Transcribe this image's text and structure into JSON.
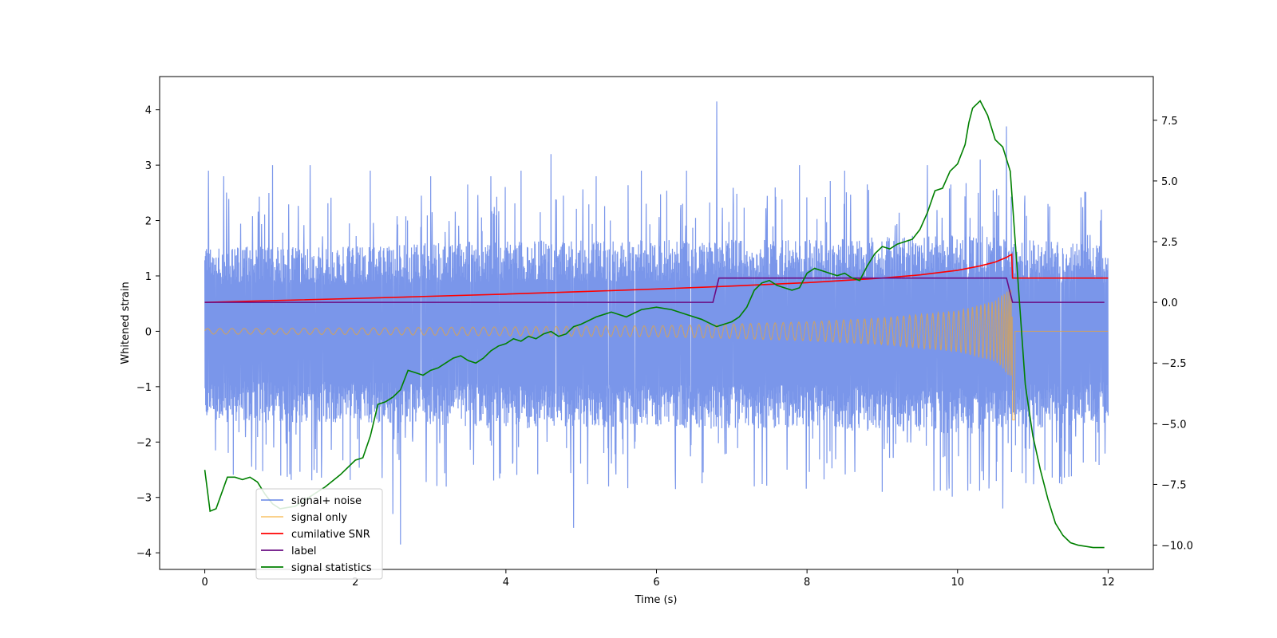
{
  "chart_data": {
    "type": "line",
    "xlabel": "Time (s)",
    "ylabel": "Whitened strain",
    "y2label": "",
    "xlim": [
      -0.6,
      12.6
    ],
    "ylim": [
      -4.3,
      4.6
    ],
    "y2lim": [
      -11.0,
      9.3
    ],
    "xticks": [
      0,
      2,
      4,
      6,
      8,
      10,
      12
    ],
    "yticks": [
      -4,
      -3,
      -2,
      -1,
      0,
      1,
      2,
      3,
      4
    ],
    "y2ticks": [
      -10.0,
      -7.5,
      -5.0,
      -2.5,
      0.0,
      2.5,
      5.0,
      7.5
    ],
    "y2tick_labels": [
      "−10.0",
      "−7.5",
      "−5.0",
      "−2.5",
      "0.0",
      "2.5",
      "5.0",
      "7.5"
    ],
    "grid": false,
    "legend_position": "lower-left",
    "series": [
      {
        "name": "signal+ noise",
        "axis": "left",
        "color": "#4169e1",
        "kind": "noise-envelope",
        "x_range": [
          0,
          12
        ],
        "envelope_upper": [
          [
            0,
            1.4
          ],
          [
            2,
            1.4
          ],
          [
            4,
            1.5
          ],
          [
            6,
            1.5
          ],
          [
            8,
            1.5
          ],
          [
            10,
            1.6
          ],
          [
            11,
            1.5
          ],
          [
            12,
            1.4
          ]
        ],
        "envelope_lower": [
          [
            0,
            -1.5
          ],
          [
            2,
            -1.5
          ],
          [
            4,
            -1.6
          ],
          [
            6,
            -1.6
          ],
          [
            8,
            -1.6
          ],
          [
            10,
            -1.7
          ],
          [
            11,
            -1.6
          ],
          [
            12,
            -1.5
          ]
        ],
        "spikes": [
          [
            0.05,
            2.9
          ],
          [
            0.25,
            2.8
          ],
          [
            0.9,
            3.0
          ],
          [
            1.4,
            3.0
          ],
          [
            2.2,
            2.9
          ],
          [
            2.5,
            -3.3
          ],
          [
            2.6,
            -3.85
          ],
          [
            3.0,
            2.8
          ],
          [
            3.8,
            2.8
          ],
          [
            4.2,
            2.9
          ],
          [
            4.6,
            3.2
          ],
          [
            4.9,
            -3.55
          ],
          [
            5.2,
            2.8
          ],
          [
            5.8,
            2.9
          ],
          [
            6.4,
            2.9
          ],
          [
            6.8,
            4.15
          ],
          [
            7.3,
            -2.8
          ],
          [
            7.9,
            3.0
          ],
          [
            8.5,
            2.9
          ],
          [
            9.0,
            -2.9
          ],
          [
            9.6,
            3.0
          ],
          [
            10.3,
            3.1
          ],
          [
            10.6,
            -3.2
          ],
          [
            10.65,
            3.7
          ],
          [
            11.2,
            2.3
          ],
          [
            11.9,
            2.0
          ]
        ]
      },
      {
        "name": "signal only",
        "axis": "left",
        "color": "#f5a623",
        "kind": "chirp",
        "x": [
          0,
          2,
          4,
          6,
          7,
          8,
          9,
          10,
          10.5,
          10.75,
          12
        ],
        "amplitude": [
          0.05,
          0.06,
          0.08,
          0.1,
          0.13,
          0.17,
          0.24,
          0.37,
          0.55,
          0.9,
          0.0
        ]
      },
      {
        "name": "cumilative SNR",
        "axis": "right",
        "color": "#ff0000",
        "x": [
          0,
          1,
          2,
          3,
          4,
          5,
          6,
          7,
          8,
          9,
          9.5,
          10,
          10.3,
          10.5,
          10.65,
          10.72,
          10.73,
          12
        ],
        "y": [
          0.0,
          0.08,
          0.16,
          0.25,
          0.34,
          0.44,
          0.55,
          0.67,
          0.81,
          1.0,
          1.13,
          1.32,
          1.5,
          1.66,
          1.85,
          1.98,
          1.0,
          1.0
        ]
      },
      {
        "name": "label",
        "axis": "right",
        "color": "#6a0d83",
        "x": [
          0,
          6.75,
          6.83,
          10.65,
          10.73,
          11.95
        ],
        "y": [
          0.0,
          0.0,
          1.0,
          1.0,
          0.0,
          0.0
        ]
      },
      {
        "name": "signal statistics",
        "axis": "right",
        "color": "#008000",
        "x": [
          0,
          0.07,
          0.15,
          0.3,
          0.4,
          0.5,
          0.6,
          0.7,
          0.8,
          0.9,
          1.0,
          1.2,
          1.4,
          1.6,
          1.8,
          2.0,
          2.1,
          2.2,
          2.3,
          2.4,
          2.5,
          2.6,
          2.7,
          2.8,
          2.9,
          3.0,
          3.1,
          3.2,
          3.3,
          3.4,
          3.5,
          3.6,
          3.7,
          3.8,
          3.9,
          4.0,
          4.1,
          4.2,
          4.3,
          4.4,
          4.5,
          4.6,
          4.7,
          4.8,
          4.9,
          5.0,
          5.2,
          5.4,
          5.6,
          5.8,
          6.0,
          6.2,
          6.4,
          6.6,
          6.8,
          6.9,
          7.0,
          7.1,
          7.2,
          7.3,
          7.4,
          7.5,
          7.6,
          7.7,
          7.8,
          7.9,
          8.0,
          8.1,
          8.2,
          8.3,
          8.4,
          8.5,
          8.6,
          8.7,
          8.8,
          8.9,
          9.0,
          9.1,
          9.2,
          9.3,
          9.4,
          9.5,
          9.6,
          9.7,
          9.8,
          9.9,
          10.0,
          10.1,
          10.15,
          10.2,
          10.3,
          10.4,
          10.5,
          10.6,
          10.7,
          10.8,
          10.9,
          11.0,
          11.1,
          11.2,
          11.3,
          11.4,
          11.5,
          11.6,
          11.8,
          11.95
        ],
        "y": [
          -6.9,
          -8.6,
          -8.5,
          -7.2,
          -7.2,
          -7.3,
          -7.2,
          -7.4,
          -7.9,
          -8.3,
          -8.5,
          -8.4,
          -8.0,
          -7.6,
          -7.1,
          -6.5,
          -6.4,
          -5.5,
          -4.2,
          -4.1,
          -3.9,
          -3.6,
          -2.8,
          -2.9,
          -3.0,
          -2.8,
          -2.7,
          -2.5,
          -2.3,
          -2.2,
          -2.4,
          -2.5,
          -2.3,
          -2.0,
          -1.8,
          -1.7,
          -1.5,
          -1.6,
          -1.4,
          -1.5,
          -1.3,
          -1.2,
          -1.4,
          -1.3,
          -1.0,
          -0.9,
          -0.6,
          -0.4,
          -0.6,
          -0.3,
          -0.2,
          -0.3,
          -0.5,
          -0.7,
          -1.0,
          -0.9,
          -0.8,
          -0.6,
          -0.2,
          0.5,
          0.8,
          0.9,
          0.7,
          0.6,
          0.5,
          0.6,
          1.2,
          1.4,
          1.3,
          1.2,
          1.1,
          1.2,
          1.0,
          0.9,
          1.5,
          2.0,
          2.3,
          2.2,
          2.4,
          2.5,
          2.6,
          3.0,
          3.7,
          4.6,
          4.7,
          5.4,
          5.7,
          6.5,
          7.4,
          8.0,
          8.3,
          7.7,
          6.7,
          6.4,
          5.4,
          1.0,
          -3.4,
          -5.5,
          -6.9,
          -8.1,
          -9.1,
          -9.6,
          -9.9,
          -10.0,
          -10.1,
          -10.1
        ]
      }
    ]
  }
}
